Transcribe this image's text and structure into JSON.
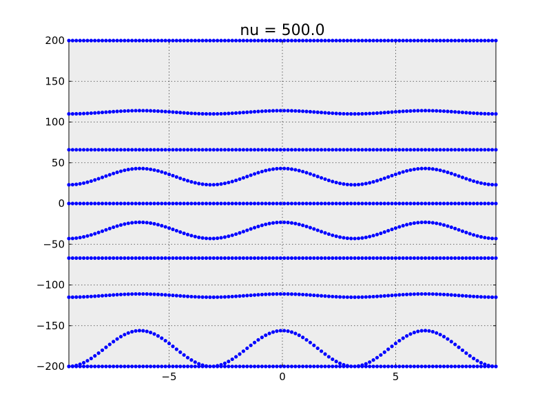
{
  "chart_data": {
    "type": "scatter",
    "title": "nu = 500.0",
    "xlabel": "",
    "ylabel": "",
    "xlim": [
      -9.42,
      9.42
    ],
    "ylim": [
      -200,
      200
    ],
    "xticks": [
      -5,
      0,
      5
    ],
    "xtick_labels": [
      "−5",
      "0",
      "5"
    ],
    "yticks": [
      -200,
      -150,
      -100,
      -50,
      0,
      50,
      100,
      150,
      200
    ],
    "ytick_labels": [
      "−200",
      "−150",
      "−100",
      "−50",
      "0",
      "50",
      "100",
      "150",
      "200"
    ],
    "grid": true,
    "background": "#ededed",
    "marker_color": "#0000ff",
    "series": [
      {
        "x_range": [
          -9.42,
          9.42
        ],
        "n_points": 116,
        "y_branches": [
          {
            "base": 200,
            "amp": 0,
            "period": 6.28
          },
          {
            "base": 0,
            "amp": 0,
            "period": 6.28
          },
          {
            "base": 112,
            "amp": 2,
            "period": 6.28
          },
          {
            "base": 66,
            "amp": 0,
            "period": 6.28
          },
          {
            "base": 33,
            "amp": 10,
            "period": 6.28
          },
          {
            "base": -33,
            "amp": 10,
            "period": 6.28
          },
          {
            "base": -67,
            "amp": 0,
            "period": 6.28
          },
          {
            "base": -113,
            "amp": 2,
            "period": 6.28
          },
          {
            "base": -178,
            "amp": 22,
            "period": 6.28
          },
          {
            "base": -200,
            "amp": 0,
            "period": 6.28
          }
        ]
      }
    ]
  }
}
